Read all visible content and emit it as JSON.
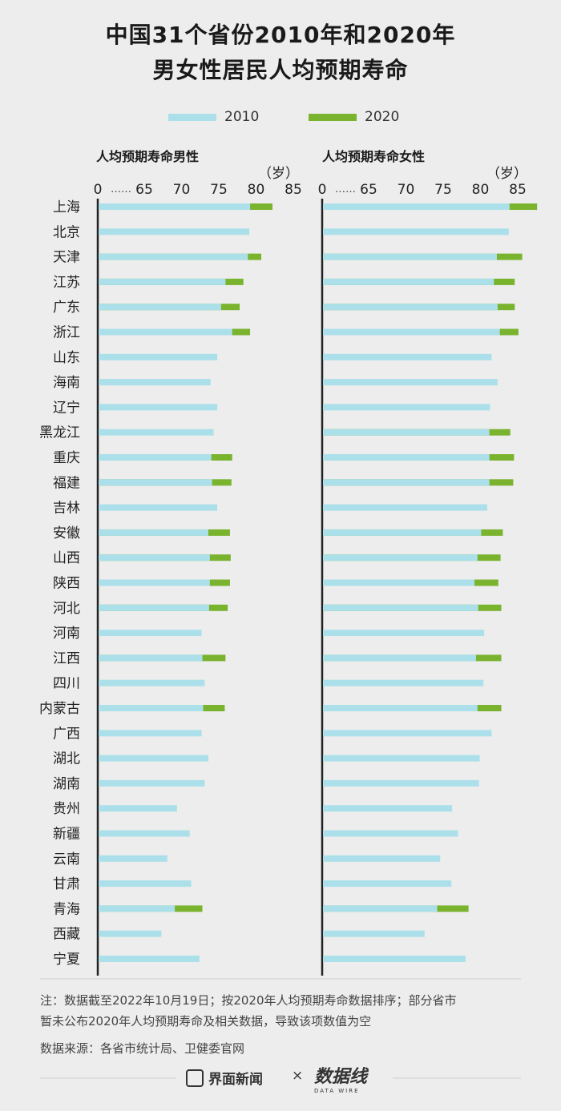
{
  "title": {
    "line1": "中国31个省份2010年和2020年",
    "line2": "男女性居民人均预期寿命"
  },
  "legend": [
    {
      "label": "2010",
      "color": "#abe0ea"
    },
    {
      "label": "2020",
      "color": "#7ab32e"
    }
  ],
  "chart_data": [
    {
      "type": "bar",
      "title": "人均预期寿命男性",
      "unit": "（岁）",
      "ticks": [
        "0",
        "65",
        "70",
        "75",
        "80",
        "85"
      ],
      "tick_values": [
        0,
        65,
        70,
        75,
        80,
        85
      ],
      "categories": [
        "上海",
        "北京",
        "天津",
        "江苏",
        "广东",
        "浙江",
        "山东",
        "海南",
        "辽宁",
        "黑龙江",
        "重庆",
        "福建",
        "吉林",
        "安徽",
        "山西",
        "陕西",
        "河北",
        "河南",
        "江西",
        "四川",
        "内蒙古",
        "广西",
        "湖北",
        "湖南",
        "贵州",
        "新疆",
        "云南",
        "甘肃",
        "青海",
        "西藏",
        "宁夏"
      ],
      "series": [
        {
          "name": "2010",
          "values": [
            79.2,
            79.1,
            78.9,
            75.9,
            75.3,
            76.8,
            74.8,
            73.9,
            74.8,
            74.3,
            74.0,
            74.1,
            74.8,
            73.6,
            73.8,
            73.8,
            73.7,
            72.7,
            72.8,
            73.1,
            72.9,
            72.7,
            73.6,
            73.1,
            69.4,
            71.1,
            68.1,
            71.3,
            69.1,
            67.3,
            72.4
          ],
          "color": "#abe0ea"
        },
        {
          "name": "2020",
          "values": [
            82.2,
            null,
            80.7,
            78.3,
            77.8,
            79.2,
            null,
            null,
            null,
            null,
            76.8,
            76.7,
            null,
            76.5,
            76.6,
            76.5,
            76.2,
            null,
            75.9,
            null,
            75.8,
            null,
            null,
            null,
            null,
            null,
            null,
            null,
            72.8,
            null,
            null
          ],
          "color": "#7ab32e"
        }
      ]
    },
    {
      "type": "bar",
      "title": "人均预期寿命女性",
      "unit": "（岁）",
      "ticks": [
        "0",
        "65",
        "70",
        "75",
        "80",
        "85"
      ],
      "tick_values": [
        0,
        65,
        70,
        75,
        80,
        85
      ],
      "categories": [
        "上海",
        "北京",
        "天津",
        "江苏",
        "广东",
        "浙江",
        "山东",
        "海南",
        "辽宁",
        "黑龙江",
        "重庆",
        "福建",
        "吉林",
        "安徽",
        "山西",
        "陕西",
        "河北",
        "河南",
        "江西",
        "四川",
        "内蒙古",
        "广西",
        "湖北",
        "湖南",
        "贵州",
        "新疆",
        "云南",
        "甘肃",
        "青海",
        "西藏",
        "宁夏"
      ],
      "series": [
        {
          "name": "2010",
          "values": [
            83.9,
            83.8,
            82.2,
            81.8,
            82.3,
            82.6,
            81.5,
            82.3,
            81.3,
            81.2,
            81.2,
            81.2,
            80.9,
            80.1,
            79.6,
            79.2,
            79.7,
            80.5,
            79.4,
            80.4,
            79.6,
            81.5,
            79.9,
            79.8,
            76.2,
            77.0,
            74.6,
            76.1,
            74.2,
            72.5,
            78.0
          ],
          "color": "#abe0ea"
        },
        {
          "name": "2020",
          "values": [
            87.6,
            null,
            85.6,
            84.6,
            84.6,
            85.1,
            null,
            null,
            null,
            84.0,
            84.5,
            84.4,
            null,
            83.0,
            82.7,
            82.4,
            82.8,
            null,
            82.8,
            null,
            82.8,
            null,
            null,
            null,
            null,
            null,
            null,
            null,
            78.4,
            null,
            null
          ],
          "color": "#7ab32e"
        }
      ]
    }
  ],
  "note": {
    "line1": "注：数据截至2022年10月19日；按2020年人均预期寿命数据排序；部分省市",
    "line2": "暂未公布2020年人均预期寿命及相关数据，导致该项数值为空"
  },
  "source": "数据来源：各省市统计局、卫健委官网",
  "brand": {
    "left": "界面新闻",
    "sep": "×",
    "right": "数据线",
    "right_sub": "DATA WIRE"
  }
}
